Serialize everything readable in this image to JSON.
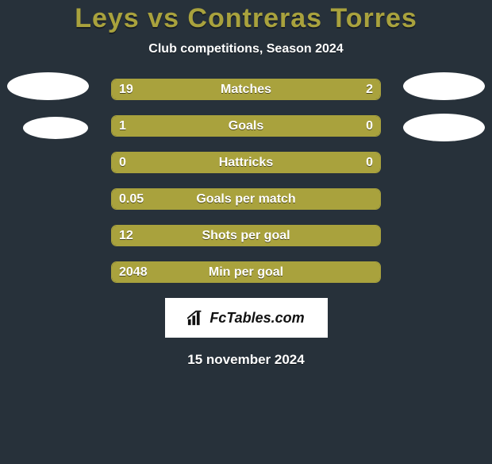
{
  "title_color": "#a9a23d",
  "title_fontsize": 34,
  "title": "Leys vs Contreras Torres",
  "subtitle": "Club competitions, Season 2024",
  "fill_color": "#a9a23d",
  "stat_rows": [
    {
      "label": "Matches",
      "left_val": "19",
      "right_val": "2",
      "left_pct": 78,
      "right_pct": 22,
      "show_right": true
    },
    {
      "label": "Goals",
      "left_val": "1",
      "right_val": "0",
      "left_pct": 80,
      "right_pct": 20,
      "show_right": true
    },
    {
      "label": "Hattricks",
      "left_val": "0",
      "right_val": "0",
      "left_pct": 100,
      "right_pct": 0,
      "show_right": true
    },
    {
      "label": "Goals per match",
      "left_val": "0.05",
      "right_val": "",
      "left_pct": 100,
      "right_pct": 0,
      "show_right": false
    },
    {
      "label": "Shots per goal",
      "left_val": "12",
      "right_val": "",
      "left_pct": 100,
      "right_pct": 0,
      "show_right": false
    },
    {
      "label": "Min per goal",
      "left_val": "2048",
      "right_val": "",
      "left_pct": 100,
      "right_pct": 0,
      "show_right": false
    }
  ],
  "logo_text": "FcTables.com",
  "date_text": "15 november 2024"
}
